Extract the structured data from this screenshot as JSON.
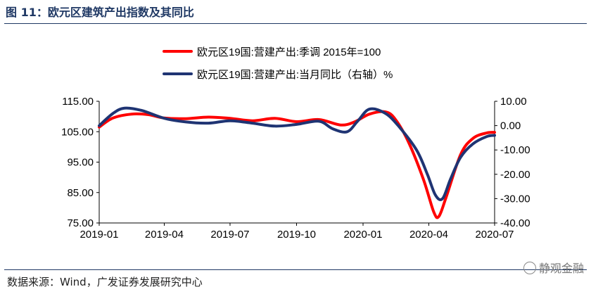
{
  "figure": {
    "title": "图 11：欧元区建筑产出指数及其同比",
    "source": "数据来源：Wind，广发证券发展研究中心",
    "watermark": "静观金融"
  },
  "colors": {
    "red": "#ff0000",
    "navy": "#1f3473",
    "title": "#1f3864"
  },
  "chart_data": {
    "type": "line",
    "x_ticks": [
      "2019-01",
      "2019-04",
      "2019-07",
      "2019-10",
      "2020-01",
      "2020-04",
      "2020-07"
    ],
    "x_start": "2019-01",
    "x_end": "2020-07",
    "y_left": {
      "ticks": [
        "115.00",
        "105.00",
        "95.00",
        "85.00",
        "75.00"
      ],
      "range": [
        75,
        115
      ]
    },
    "y_right": {
      "ticks": [
        "10.00",
        "0.00",
        "-10.00",
        "-20.00",
        "-30.00",
        "-40.00"
      ],
      "range": [
        -40,
        10
      ]
    },
    "grid": false,
    "legend_position": "top",
    "series": [
      {
        "name": "欧元区19国:营建产出:季调 2015年=100",
        "axis": "left",
        "color": "#ff0000",
        "points": [
          [
            "2019-01-01",
            106.5
          ],
          [
            "2019-01-20",
            109.5
          ],
          [
            "2019-02-15",
            110.8
          ],
          [
            "2019-03-10",
            110.6
          ],
          [
            "2019-04-01",
            109.5
          ],
          [
            "2019-05-01",
            109.3
          ],
          [
            "2019-06-01",
            109.8
          ],
          [
            "2019-07-01",
            109.4
          ],
          [
            "2019-08-01",
            108.6
          ],
          [
            "2019-09-01",
            109.4
          ],
          [
            "2019-10-01",
            108.3
          ],
          [
            "2019-11-01",
            109.0
          ],
          [
            "2019-12-01",
            107.2
          ],
          [
            "2019-12-20",
            108.2
          ],
          [
            "2020-01-10",
            110.8
          ],
          [
            "2020-02-01",
            111.5
          ],
          [
            "2020-02-15",
            109.0
          ],
          [
            "2020-03-05",
            101.0
          ],
          [
            "2020-03-25",
            89.0
          ],
          [
            "2020-04-08",
            78.5
          ],
          [
            "2020-04-15",
            77.2
          ],
          [
            "2020-04-25",
            83.5
          ],
          [
            "2020-05-15",
            97.5
          ],
          [
            "2020-06-01",
            102.8
          ],
          [
            "2020-06-20",
            104.6
          ],
          [
            "2020-07-01",
            104.8
          ]
        ]
      },
      {
        "name": "欧元区19国:营建产出:当月同比（右轴）%",
        "axis": "right",
        "color": "#1f3473",
        "points": [
          [
            "2019-01-01",
            0.0
          ],
          [
            "2019-01-20",
            5.0
          ],
          [
            "2019-02-05",
            7.2
          ],
          [
            "2019-03-01",
            6.2
          ],
          [
            "2019-04-01",
            3.0
          ],
          [
            "2019-05-01",
            1.5
          ],
          [
            "2019-06-01",
            1.0
          ],
          [
            "2019-07-01",
            2.0
          ],
          [
            "2019-08-01",
            1.0
          ],
          [
            "2019-09-01",
            -0.2
          ],
          [
            "2019-10-01",
            0.5
          ],
          [
            "2019-11-01",
            1.8
          ],
          [
            "2019-11-20",
            -1.3
          ],
          [
            "2019-12-10",
            -2.5
          ],
          [
            "2019-12-25",
            2.0
          ],
          [
            "2020-01-10",
            6.8
          ],
          [
            "2020-02-01",
            5.0
          ],
          [
            "2020-02-20",
            -0.5
          ],
          [
            "2020-03-15",
            -10.0
          ],
          [
            "2020-03-30",
            -20.0
          ],
          [
            "2020-04-10",
            -28.5
          ],
          [
            "2020-04-20",
            -30.0
          ],
          [
            "2020-05-01",
            -22.0
          ],
          [
            "2020-05-15",
            -13.0
          ],
          [
            "2020-06-01",
            -7.5
          ],
          [
            "2020-06-20",
            -4.5
          ],
          [
            "2020-07-01",
            -4.0
          ]
        ]
      }
    ]
  }
}
